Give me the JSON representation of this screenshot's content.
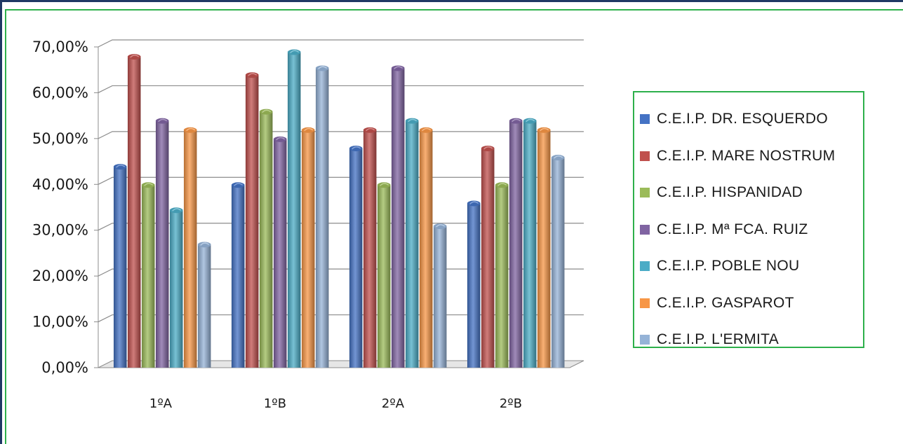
{
  "chart_data": {
    "type": "bar",
    "categories": [
      "1ºA",
      "1ºB",
      "2ºA",
      "2ºB"
    ],
    "series": [
      {
        "name": "C.E.I.P. DR. ESQUERDO",
        "color": "#4472c4",
        "values": [
          44,
          40,
          48,
          36
        ]
      },
      {
        "name": "C.E.I.P. MARE NOSTRUM",
        "color": "#c0504d",
        "values": [
          68,
          64,
          52,
          48
        ]
      },
      {
        "name": "C.E.I.P. HISPANIDAD",
        "color": "#9bbb59",
        "values": [
          40,
          56,
          40,
          40
        ]
      },
      {
        "name": "C.E.I.P. Mª FCA. RUIZ",
        "color": "#8064a2",
        "values": [
          54,
          50,
          65.5,
          54
        ]
      },
      {
        "name": "C.E.I.P. POBLE NOU",
        "color": "#4bacc6",
        "values": [
          34.5,
          69,
          54,
          54
        ]
      },
      {
        "name": "C.E.I.P. GASPAROT",
        "color": "#f79646",
        "values": [
          52,
          52,
          52,
          52
        ]
      },
      {
        "name": "C.E.I.P. L'ERMITA",
        "color": "#95b3d7",
        "values": [
          27,
          65.5,
          31,
          46
        ]
      }
    ],
    "ytick_labels": [
      "0,00%",
      "10,00%",
      "20,00%",
      "30,00%",
      "40,00%",
      "50,00%",
      "60,00%",
      "70,00%"
    ],
    "ylim": [
      0,
      70
    ],
    "grid": true,
    "legend_position": "right"
  }
}
